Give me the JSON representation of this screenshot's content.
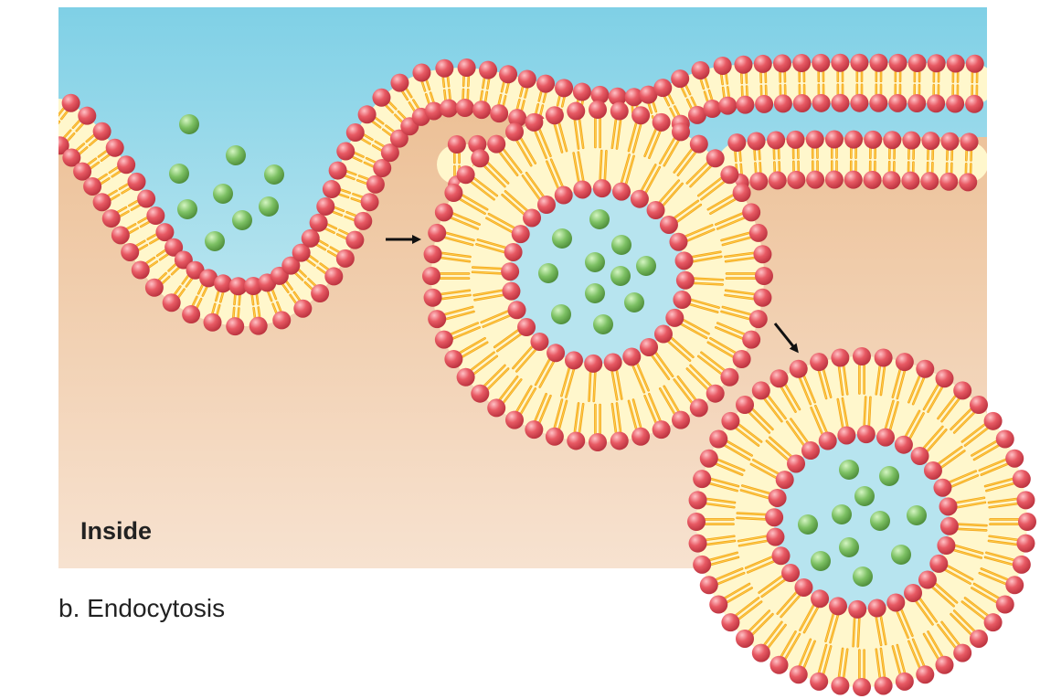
{
  "diagram": {
    "title": "b. Endocytosis",
    "inside_label": "Inside",
    "stages": [
      "membrane invagination",
      "vesicle pinching off",
      "free vesicle"
    ],
    "colors": {
      "outside_top": "#7fd0e6",
      "outside_bottom": "#b9e5ef",
      "inside_top": "#eab98a",
      "inside_bottom": "#f7e2d0",
      "lumen": "#b7e4ef",
      "bilayer_core": "#fff7cc",
      "lipid_tail": "#f3a51d",
      "lipid_tail_highlight": "#ffd24d",
      "lipid_head": "#e85a64",
      "lipid_head_highlight": "#ffc2c6",
      "cargo": "#7cc063",
      "cargo_highlight": "#d4f5c2",
      "arrow": "#111111"
    },
    "icons": [
      "lipid-head-icon",
      "cargo-particle-icon",
      "arrow-icon"
    ]
  }
}
